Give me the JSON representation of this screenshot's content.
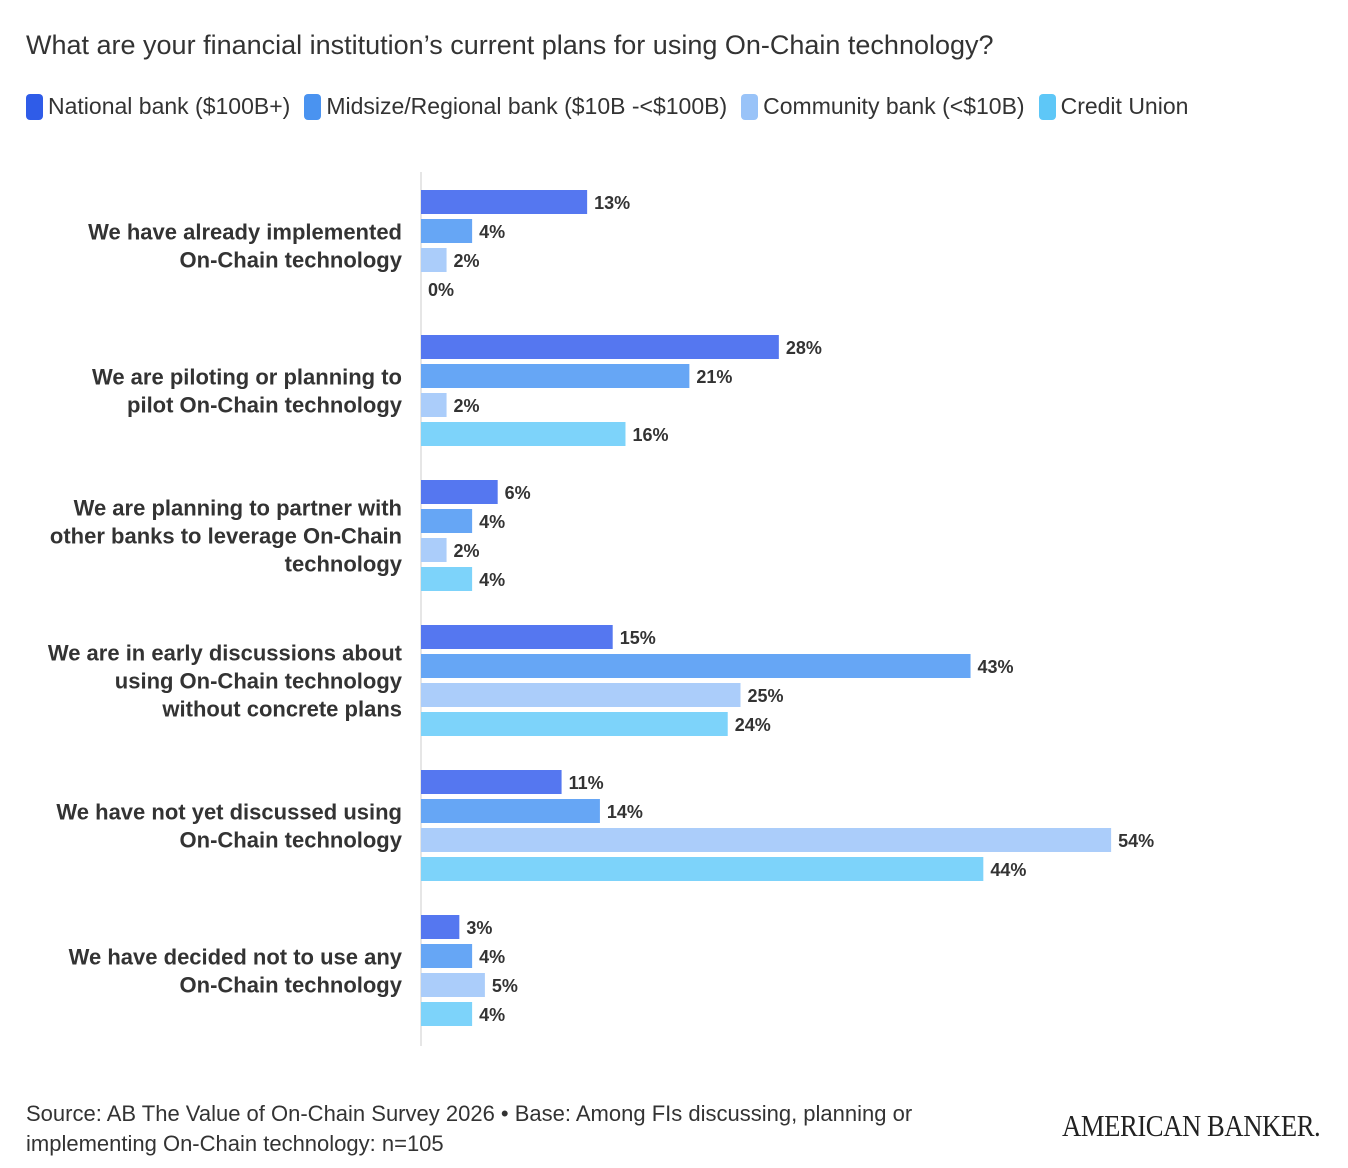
{
  "chart_data": {
    "type": "bar",
    "orientation": "horizontal",
    "title": "What are your financial institution’s current plans for using On-Chain technology?",
    "categories": [
      [
        "We have already implemented",
        "On-Chain technology"
      ],
      [
        "We are piloting or planning to",
        "pilot On-Chain technology"
      ],
      [
        "We are planning to partner with",
        "other banks to leverage On-Chain",
        "technology"
      ],
      [
        "We are in early discussions about",
        "using On-Chain technology",
        "without concrete plans"
      ],
      [
        "We have not yet discussed using",
        "On-Chain technology"
      ],
      [
        "We have decided not to use any",
        "On-Chain technology"
      ]
    ],
    "series": [
      {
        "name": "National bank ($100B+)",
        "color": "#5577f0",
        "legend_color": "#2f5ce8",
        "values": [
          13,
          28,
          6,
          15,
          11,
          3
        ]
      },
      {
        "name": "Midsize/Regional bank ($10B -<$100B)",
        "color": "#66a6f5",
        "legend_color": "#4a93f0",
        "values": [
          4,
          21,
          4,
          43,
          14,
          4
        ]
      },
      {
        "name": "Community bank (<$10B)",
        "color": "#abcdfa",
        "legend_color": "#99c3f8",
        "values": [
          2,
          2,
          2,
          25,
          54,
          5
        ]
      },
      {
        "name": "Credit Union",
        "color": "#7dd3fa",
        "legend_color": "#5ec7f7",
        "values": [
          0,
          16,
          4,
          24,
          44,
          4
        ]
      }
    ],
    "value_suffix": "%",
    "xlim": [
      0,
      54
    ],
    "grid": false,
    "legend_position": "top-left"
  },
  "footer": {
    "source": "Source: AB The Value of On-Chain Survey 2026 • Base: Among FIs discussing, planning or implementing On-Chain technology: n=105",
    "logo": "AMERICAN BANKER."
  }
}
